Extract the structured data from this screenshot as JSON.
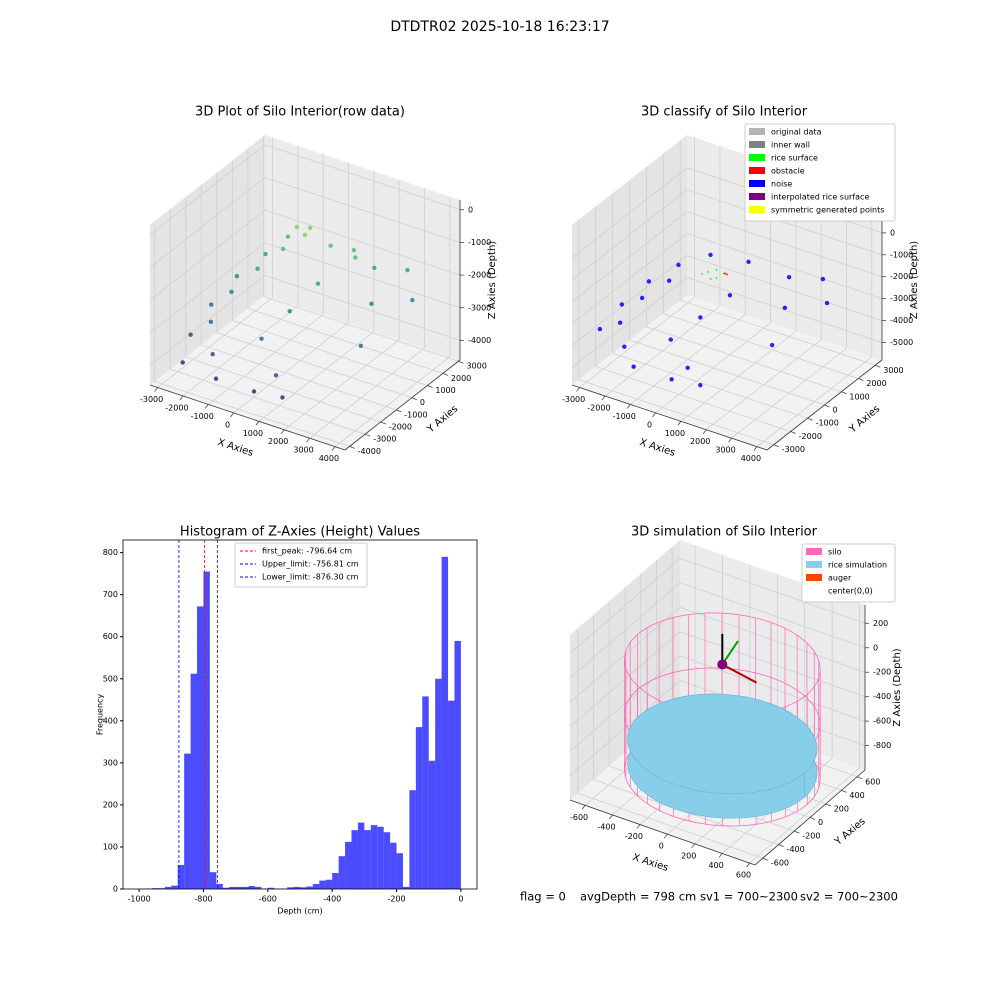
{
  "title": "DTDTR02 2025-10-18 16:23:17",
  "footer": [
    "flag = 0",
    "avgDepth = 798 cm",
    "sv1 = 700~2300",
    "sv2 = 700~2300"
  ],
  "chart_data": [
    {
      "type": "scatter3d",
      "title": "3D Plot of Silo Interior(row data)",
      "xlabel": "X Axies",
      "ylabel": "Y Axies",
      "zlabel": "Z Axies (Depth)",
      "xlim": [
        -3300,
        4400
      ],
      "ylim": [
        -4300,
        3100
      ],
      "zlim": [
        -4600,
        300
      ],
      "xticks": [
        -3000,
        -2000,
        -1000,
        0,
        1000,
        2000,
        3000,
        4000
      ],
      "yticks": [
        -4000,
        -3000,
        -2000,
        -1000,
        0,
        1000,
        2000,
        3000
      ],
      "zticks": [
        0,
        -1000,
        -2000,
        -3000,
        -4000
      ],
      "cmap": "viridis",
      "x": [
        200,
        -200,
        300,
        -800,
        700,
        1500,
        1800,
        -500,
        -1500,
        -1200,
        1000,
        2000,
        3000,
        -2200,
        -1800,
        500,
        2500,
        3500,
        -2600,
        -2000,
        0,
        3000,
        -2800,
        -1500,
        1000,
        -2500,
        -1000,
        500,
        1500
      ],
      "y": [
        300,
        100,
        -200,
        500,
        800,
        1000,
        600,
        -300,
        200,
        -800,
        -500,
        1500,
        2000,
        -500,
        -1500,
        -1500,
        500,
        1500,
        -1500,
        -2500,
        -2500,
        -1000,
        -2500,
        -3200,
        -3200,
        -3500,
        -3800,
        -3800,
        -3600
      ],
      "z": [
        -600,
        -600,
        -600,
        -1200,
        -1200,
        -1200,
        -1200,
        -1200,
        -1800,
        -1800,
        -1800,
        -1800,
        -1800,
        -2400,
        -2400,
        -2400,
        -2400,
        -2400,
        -3000,
        -3000,
        -3000,
        -3000,
        -3600,
        -3600,
        -3600,
        -4000,
        -4000,
        -4000,
        -4000
      ]
    },
    {
      "type": "scatter3d",
      "title": "3D classify of Silo Interior",
      "xlabel": "X Axies",
      "ylabel": "Y Axies",
      "zlabel": "Z Axies (Depth)",
      "xlim": [
        -3300,
        4400
      ],
      "ylim": [
        -3400,
        3400
      ],
      "zlim": [
        -5800,
        1500
      ],
      "xticks": [
        -3000,
        -2000,
        -1000,
        0,
        1000,
        2000,
        3000,
        4000
      ],
      "yticks": [
        -3000,
        -2000,
        -1000,
        0,
        1000,
        2000,
        3000
      ],
      "zticks": [
        0,
        -1000,
        -2000,
        -3000,
        -4000,
        -5000
      ],
      "series": [
        {
          "name": "original data",
          "color": "#b3b3b3"
        },
        {
          "name": "inner wall",
          "color": "#808080"
        },
        {
          "name": "rice surface",
          "color": "#00ff00",
          "x": [
            -200,
            0,
            200,
            300,
            -300,
            100
          ],
          "y": [
            0,
            200,
            -100,
            200,
            -200,
            -300
          ],
          "z": [
            -1500,
            -1450,
            -1550,
            -1500,
            -1500,
            -1520
          ]
        },
        {
          "name": "obstacle",
          "color": "#ff0000",
          "x": [
            400,
            450
          ],
          "y": [
            100,
            150
          ],
          "z": [
            -1400,
            -1450
          ]
        },
        {
          "name": "noise",
          "color": "#0000ff",
          "x": [
            -1500,
            -1200,
            1000,
            2000,
            3000,
            -2200,
            -1800,
            500,
            2500,
            3500,
            -2600,
            -2000,
            0,
            3000,
            -2800,
            -1500,
            1000,
            -1000,
            500,
            1500,
            -500,
            800
          ],
          "y": [
            200,
            -800,
            -500,
            1500,
            2000,
            -500,
            -1500,
            -1500,
            500,
            1500,
            -1500,
            -2500,
            -2500,
            -1000,
            -2500,
            -3000,
            -3000,
            -3200,
            -3200,
            -3000,
            600,
            900
          ],
          "z": [
            -1800,
            -1800,
            -1800,
            -1800,
            -1800,
            -2400,
            -2400,
            -2400,
            -2400,
            -2400,
            -3000,
            -3000,
            -3000,
            -3000,
            -3600,
            -3600,
            -3600,
            -4200,
            -4200,
            -4200,
            -1200,
            -1200
          ]
        },
        {
          "name": "interpolated rice surface",
          "color": "#800080"
        },
        {
          "name": "symmetric generated points",
          "color": "#ffff00"
        }
      ]
    },
    {
      "type": "histogram",
      "title": "Histogram of Z-Axies (Height) Values",
      "xlabel": "Depth (cm)",
      "ylabel": "Frequency",
      "color": "#0000ff",
      "xlim": [
        -1050,
        50
      ],
      "ylim": [
        0,
        830
      ],
      "xticks": [
        -1000,
        -800,
        -600,
        -400,
        -200,
        0
      ],
      "yticks": [
        0,
        100,
        200,
        300,
        400,
        500,
        600,
        700,
        800
      ],
      "bins": [
        -1000,
        -980,
        -960,
        -940,
        -920,
        -900,
        -880,
        -860,
        -840,
        -820,
        -800,
        -780,
        -760,
        -740,
        -720,
        -700,
        -680,
        -660,
        -640,
        -620,
        -600,
        -580,
        -560,
        -540,
        -520,
        -500,
        -480,
        -460,
        -440,
        -420,
        -400,
        -380,
        -360,
        -340,
        -320,
        -300,
        -280,
        -260,
        -240,
        -220,
        -200,
        -180,
        -160,
        -140,
        -120,
        -100,
        -80,
        -60,
        -40,
        -20,
        0
      ],
      "counts": [
        0,
        1,
        2,
        2,
        5,
        8,
        57,
        322,
        512,
        672,
        755,
        40,
        12,
        3,
        5,
        5,
        5,
        7,
        5,
        1,
        3,
        1,
        1,
        4,
        5,
        4,
        6,
        12,
        20,
        22,
        38,
        78,
        112,
        140,
        158,
        140,
        152,
        148,
        135,
        110,
        85,
        5,
        235,
        385,
        458,
        305,
        500,
        790,
        448,
        590
      ],
      "vlines": [
        {
          "name": "first_peak: -796.64 cm",
          "value": -796.64,
          "color": "#ff0000"
        },
        {
          "name": "Upper_limit: -756.81 cm",
          "value": -756.81,
          "color": "#0000ff"
        },
        {
          "name": "Lower_limit: -876.30 cm",
          "value": -876.3,
          "color": "#0000ff"
        }
      ]
    },
    {
      "type": "silo3d",
      "title": "3D simulation of Silo Interior",
      "xlabel": "X Axies",
      "ylabel": "Y Axies",
      "zlabel": "Z Axies (Depth)",
      "xlim": [
        -710,
        640
      ],
      "ylim": [
        -700,
        700
      ],
      "zlim": [
        -1000,
        350
      ],
      "xticks": [
        -600,
        -400,
        -200,
        0,
        200,
        400,
        600
      ],
      "yticks": [
        -600,
        -400,
        -200,
        0,
        200,
        400,
        600
      ],
      "zticks": [
        200,
        0,
        -200,
        -400,
        -600,
        -800
      ],
      "series": [
        {
          "name": "silo",
          "color": "#ff69b4"
        },
        {
          "name": "rice simulation",
          "color": "#87ceeb"
        },
        {
          "name": "auger",
          "color": "#ff4500"
        },
        {
          "name": "center(0,0)",
          "color": "#ffffff"
        }
      ]
    }
  ]
}
